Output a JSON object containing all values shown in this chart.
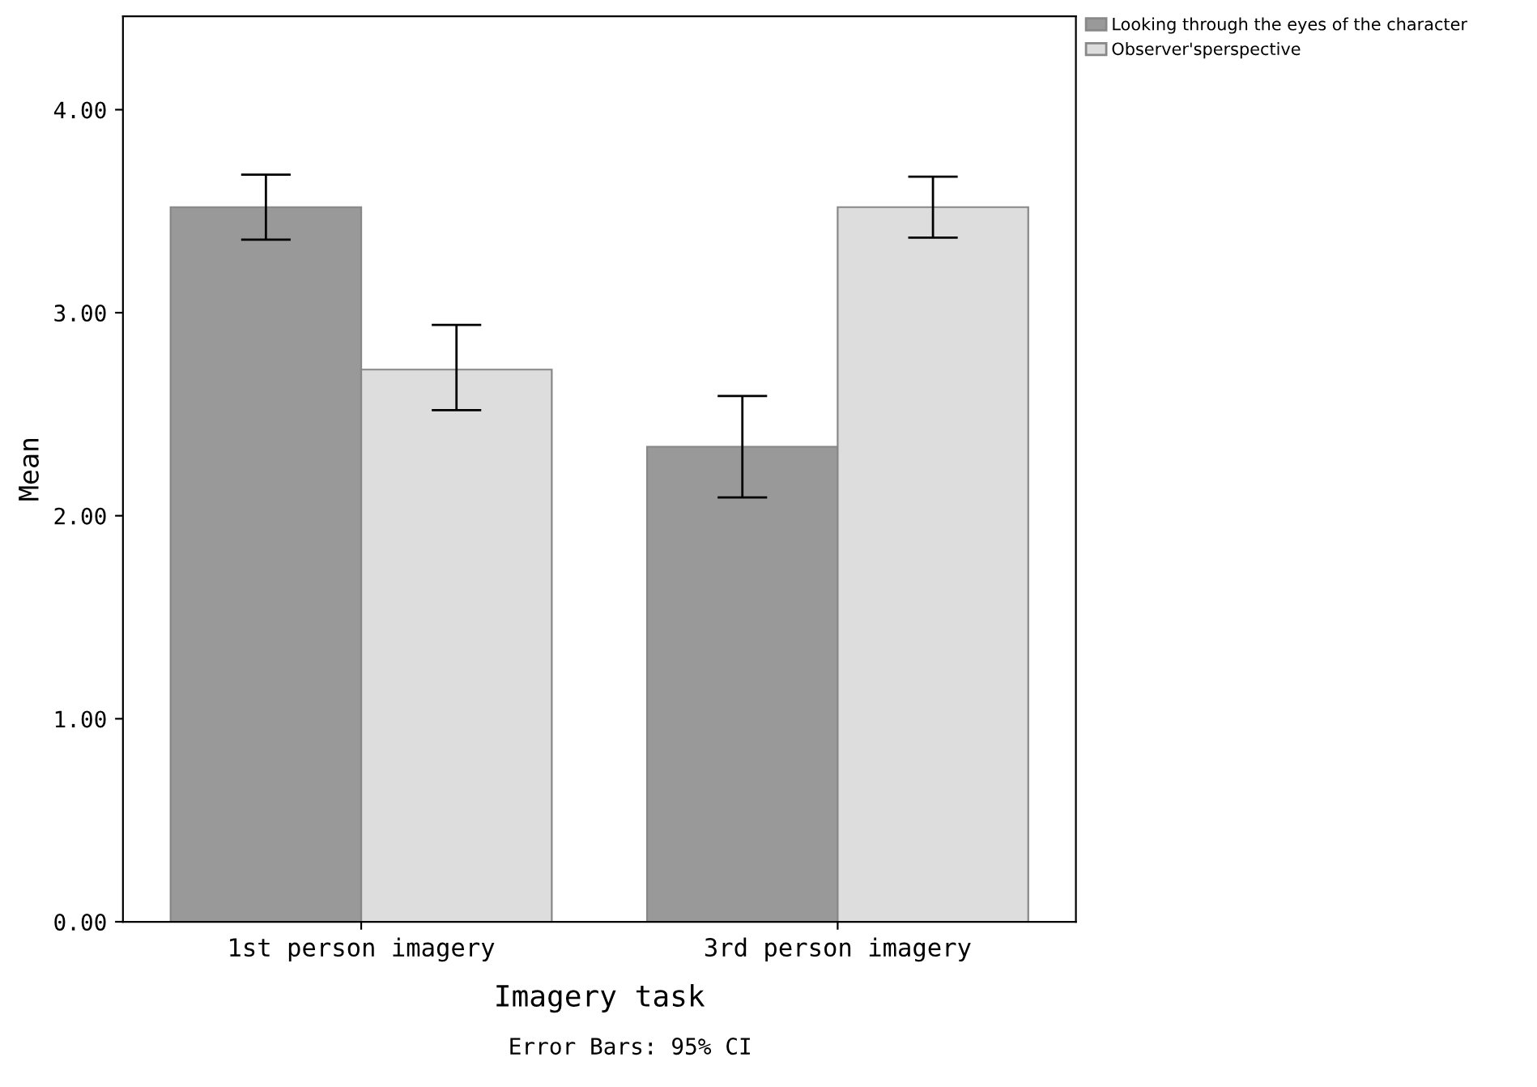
{
  "chart_data": {
    "type": "bar",
    "xlabel": "Imagery task",
    "ylabel": "Mean",
    "categories": [
      "1st person imagery",
      "3rd person imagery"
    ],
    "series": [
      {
        "name": "Looking through the eyes of the character",
        "color": "#999999",
        "values": [
          3.52,
          2.34
        ],
        "errors": [
          [
            3.36,
            3.68
          ],
          [
            2.09,
            2.59
          ]
        ]
      },
      {
        "name": "Observer'sperspective",
        "color": "#dddddd",
        "values": [
          2.72,
          3.52
        ],
        "errors": [
          [
            2.52,
            2.94
          ],
          [
            3.37,
            3.67
          ]
        ]
      }
    ],
    "ylim": [
      0,
      4.46
    ],
    "yticks": [
      {
        "value": 0,
        "label": "0.00"
      },
      {
        "value": 1,
        "label": "1.00"
      },
      {
        "value": 2,
        "label": "2.00"
      },
      {
        "value": 3,
        "label": "3.00"
      },
      {
        "value": 4,
        "label": "4.00"
      }
    ],
    "grid": false,
    "legend": "top right",
    "annotations": [
      "Error Bars: 95% CI"
    ]
  }
}
